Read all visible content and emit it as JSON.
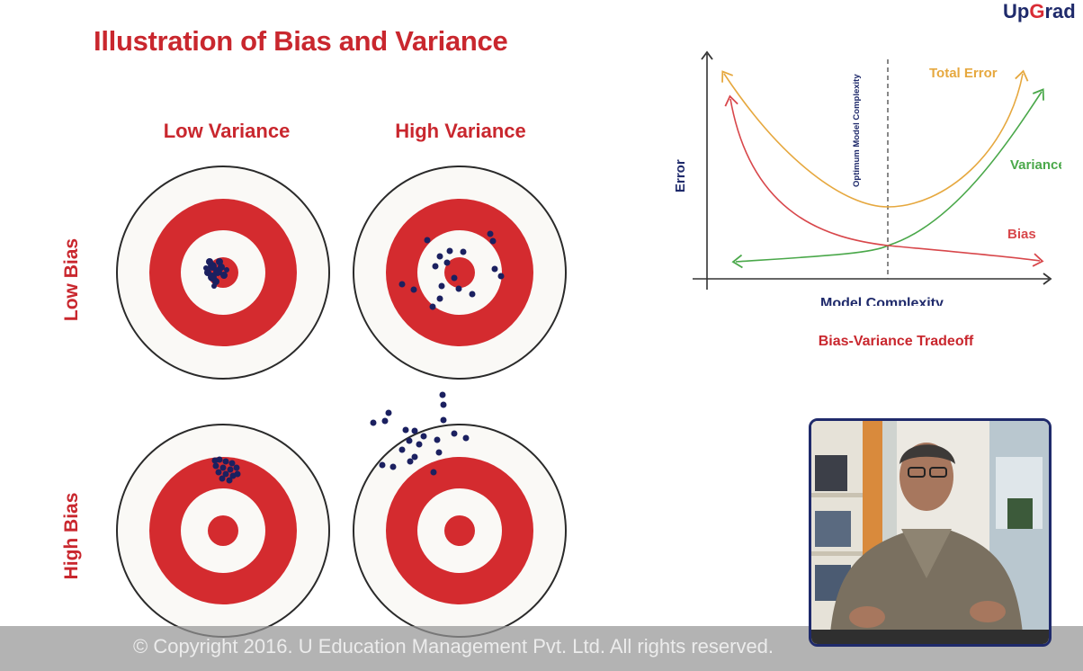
{
  "brand": {
    "logo_pre": "Up",
    "logo_g": "G",
    "logo_post": "rad"
  },
  "slide": {
    "title": "Illustration of Bias and Variance",
    "col_headers": [
      "Low Variance",
      "High Variance"
    ],
    "row_headers": [
      "Low Bias",
      "High Bias"
    ]
  },
  "colors": {
    "accent_red": "#c9272e",
    "target_red": "#d42b2f",
    "navy": "#1f2a6b",
    "total_error": "#e6a83f",
    "variance": "#4aa84a",
    "bias": "#d8474b"
  },
  "chart_data": {
    "type": "line",
    "xlabel": "Model Complexity",
    "ylabel": "Error",
    "vline_label": "Optimum Model Complexity",
    "caption": "Bias-Variance Tradeoff",
    "series": [
      {
        "name": "Total Error"
      },
      {
        "name": "Variance"
      },
      {
        "name": "Bias"
      }
    ]
  },
  "footer": {
    "copyright": "© Copyright 2016. U Education Management Pvt. Ltd. All rights reserved."
  },
  "presenter": {
    "icon": "presenter-video-icon"
  }
}
